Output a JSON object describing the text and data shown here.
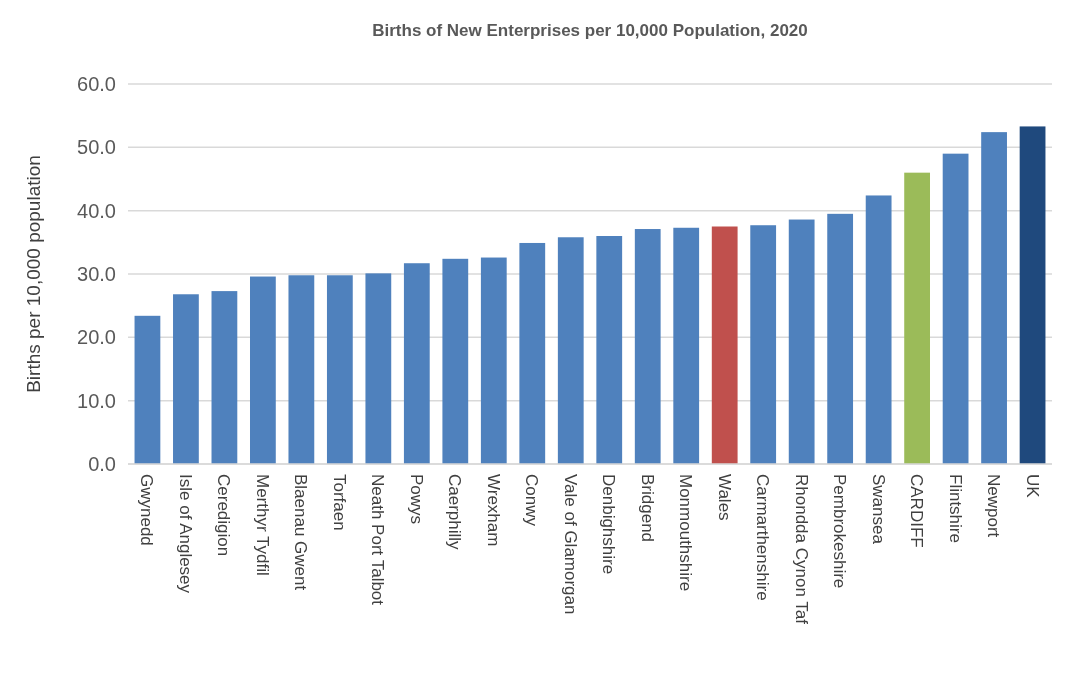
{
  "chart_data": {
    "type": "bar",
    "title": "Births of New Enterprises per 10,000 Population,  2020",
    "ylabel": "Births per 10,000 population",
    "categories": [
      "Gwynedd",
      "Isle of Anglesey",
      "Ceredigion",
      "Merthyr Tydfil",
      "Blaenau Gwent",
      "Torfaen",
      "Neath Port Talbot",
      "Powys",
      "Caerphilly",
      "Wrexham",
      "Conwy",
      "Vale of Glamorgan",
      "Denbighshire",
      "Bridgend",
      "Monmouthshire",
      "Wales",
      "Carmarthenshire",
      "Rhondda Cynon Taf",
      "Pembrokeshire",
      "Swansea",
      "CARDIFF",
      "Flintshire",
      "Newport",
      "UK"
    ],
    "values": [
      23.4,
      26.8,
      27.3,
      29.6,
      29.8,
      29.8,
      30.1,
      31.7,
      32.4,
      32.6,
      34.9,
      35.8,
      36.0,
      37.1,
      37.3,
      37.5,
      37.7,
      38.6,
      39.5,
      42.4,
      46.0,
      49.0,
      52.4,
      53.3
    ],
    "colors": [
      "#4f81bd",
      "#4f81bd",
      "#4f81bd",
      "#4f81bd",
      "#4f81bd",
      "#4f81bd",
      "#4f81bd",
      "#4f81bd",
      "#4f81bd",
      "#4f81bd",
      "#4f81bd",
      "#4f81bd",
      "#4f81bd",
      "#4f81bd",
      "#4f81bd",
      "#c0504d",
      "#4f81bd",
      "#4f81bd",
      "#4f81bd",
      "#4f81bd",
      "#9bbb59",
      "#4f81bd",
      "#4f81bd",
      "#1f497d"
    ],
    "ylim": [
      0,
      60
    ],
    "yticks": [
      {
        "value": 0,
        "label": "0.0"
      },
      {
        "value": 10,
        "label": "10.0"
      },
      {
        "value": 20,
        "label": "20.0"
      },
      {
        "value": 30,
        "label": "30.0"
      },
      {
        "value": 40,
        "label": "40.0"
      },
      {
        "value": 50,
        "label": "50.0"
      },
      {
        "value": 60,
        "label": "60.0"
      }
    ],
    "grid": "y"
  }
}
